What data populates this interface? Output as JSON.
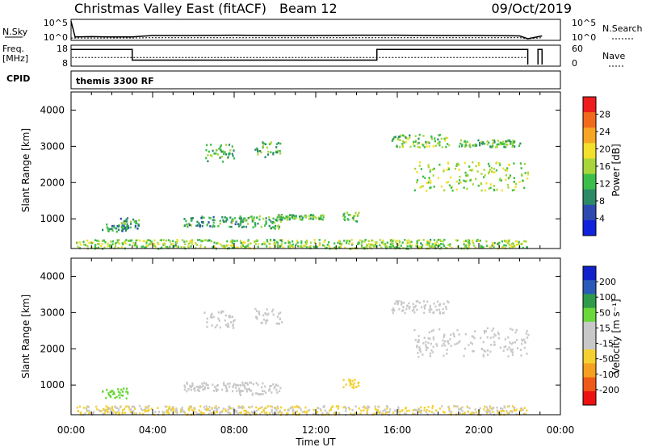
{
  "header": {
    "title": "Christmas Valley East (fitACF)",
    "beam": "Beam 12",
    "date": "09/Oct/2019"
  },
  "noise_panel": {
    "left_label": "N.Sky",
    "left_ticks": [
      "10^5",
      "10^0"
    ],
    "right_ticks": [
      "10^5",
      "10^0"
    ],
    "right_label": "N.Search"
  },
  "freq_panel": {
    "left_label_line1": "Freq.",
    "left_label_line2": "[MHz]",
    "left_ticks": [
      "18",
      "8"
    ],
    "right_ticks": [
      "60",
      "0"
    ],
    "right_label": "Nave"
  },
  "cpid_panel": {
    "label": "CPID",
    "program": "themis 3300 RF"
  },
  "axes": {
    "ylabel": "Slant Range [km]",
    "xlabel": "Time UT",
    "xticks": [
      "00:00",
      "04:00",
      "08:00",
      "12:00",
      "16:00",
      "20:00",
      "00:00"
    ],
    "yticks": [
      "1000",
      "2000",
      "3000",
      "4000"
    ]
  },
  "colorbars": {
    "power": {
      "label": "Power [dB]",
      "ticks": [
        "4",
        "8",
        "12",
        "16",
        "20",
        "24",
        "28"
      ]
    },
    "velocity": {
      "label": "Velocity [m s⁻¹]",
      "ticks": [
        "200",
        "100",
        "50",
        "15",
        "-15",
        "-50",
        "-100",
        "-200"
      ]
    }
  },
  "colors": {
    "power_scale": [
      "#1122dd",
      "#2e4ab0",
      "#2c8a66",
      "#3cbf4a",
      "#a8d63a",
      "#f2e02a",
      "#f6a623",
      "#f26b1c",
      "#ee1c1c"
    ],
    "velocity_scale": [
      "#ee1111",
      "#f05a18",
      "#f5a020",
      "#f4d030",
      "#c8c8c8",
      "#c8c8c8",
      "#6ad83a",
      "#2e9a4a",
      "#2a5ab8",
      "#1122cc"
    ]
  },
  "chart_data": [
    {
      "type": "line",
      "name": "noise",
      "x_hours": [
        0,
        0.2,
        1,
        2,
        3,
        4,
        6,
        8,
        10,
        12,
        14,
        16,
        18,
        20,
        22,
        22.4,
        23.1
      ],
      "y_log10_sky": [
        4.9,
        0.5,
        0.6,
        0.5,
        0.5,
        0.9,
        0.9,
        1.0,
        0.9,
        0.9,
        1.0,
        1.0,
        0.9,
        0.9,
        0.8,
        0.0,
        0.8
      ],
      "y_log10_search": [
        0.2,
        0.2,
        0.2,
        0.2,
        0.2,
        0.3,
        0.3,
        0.3,
        0.3,
        0.3,
        0.3,
        0.3,
        0.3,
        0.3,
        0.3,
        0.0,
        0.3
      ],
      "ylim_log10": [
        0,
        5
      ]
    },
    {
      "type": "line",
      "name": "frequency",
      "segments": [
        {
          "x0": 0,
          "x1": 3.0,
          "freq_mhz": 16.5
        },
        {
          "x0": 3.0,
          "x1": 15.0,
          "freq_mhz": 10.5
        },
        {
          "x0": 15.0,
          "x1": 22.4,
          "freq_mhz": 16.5
        },
        {
          "x0": 22.9,
          "x1": 23.1,
          "freq_mhz": 16.5
        }
      ],
      "nave": 24,
      "ylim_freq": [
        8,
        18
      ],
      "ylim_nave": [
        0,
        60
      ]
    },
    {
      "type": "heatmap",
      "name": "power",
      "x_range_hours": [
        0,
        24
      ],
      "y_range_km": [
        180,
        4500
      ],
      "clim_db": [
        0,
        30
      ],
      "bands": [
        {
          "t0": 1.5,
          "t1": 2.7,
          "r0": 650,
          "r1": 900,
          "level": 8
        },
        {
          "t0": 2.3,
          "t1": 3.5,
          "r0": 750,
          "r1": 1050,
          "level": 9
        },
        {
          "t0": 5.5,
          "t1": 8.5,
          "r0": 800,
          "r1": 1100,
          "level": 9
        },
        {
          "t0": 8.2,
          "t1": 10.3,
          "r0": 750,
          "r1": 1100,
          "level": 11
        },
        {
          "t0": 10.0,
          "t1": 12.5,
          "r0": 1000,
          "r1": 1150,
          "level": 12
        },
        {
          "t0": 13.3,
          "t1": 14.1,
          "r0": 950,
          "r1": 1200,
          "level": 13
        },
        {
          "t0": 6.5,
          "t1": 8.0,
          "r0": 2600,
          "r1": 3100,
          "level": 11
        },
        {
          "t0": 9.0,
          "t1": 10.3,
          "r0": 2700,
          "r1": 3150,
          "level": 12
        },
        {
          "t0": 15.7,
          "t1": 18.5,
          "r0": 3000,
          "r1": 3350,
          "level": 13
        },
        {
          "t0": 16.8,
          "t1": 22.4,
          "r0": 1800,
          "r1": 2600,
          "level": 15
        },
        {
          "t0": 19.0,
          "t1": 22.0,
          "r0": 3000,
          "r1": 3200,
          "level": 12
        },
        {
          "t0": 0.2,
          "t1": 22.4,
          "r0": 200,
          "r1": 450,
          "level": 14
        }
      ]
    },
    {
      "type": "heatmap",
      "name": "velocity",
      "x_range_hours": [
        0,
        24
      ],
      "y_range_km": [
        180,
        4500
      ],
      "clim_ms": [
        -200,
        200
      ],
      "bands": [
        {
          "t0": 1.5,
          "t1": 2.8,
          "r0": 650,
          "r1": 950,
          "vel": 60
        },
        {
          "t0": 5.5,
          "t1": 8.5,
          "r0": 850,
          "r1": 1100,
          "vel": -15
        },
        {
          "t0": 8.2,
          "t1": 10.3,
          "r0": 750,
          "r1": 1100,
          "vel": -10
        },
        {
          "t0": 13.3,
          "t1": 14.1,
          "r0": 950,
          "r1": 1200,
          "vel": -60
        },
        {
          "t0": 6.5,
          "t1": 8.0,
          "r0": 2600,
          "r1": 3100,
          "vel": 5
        },
        {
          "t0": 9.0,
          "t1": 10.3,
          "r0": 2700,
          "r1": 3150,
          "vel": 5
        },
        {
          "t0": 15.7,
          "t1": 18.5,
          "r0": 3000,
          "r1": 3350,
          "vel": 0
        },
        {
          "t0": 16.8,
          "t1": 22.4,
          "r0": 1800,
          "r1": 2600,
          "vel": 0
        },
        {
          "t0": 0.2,
          "t1": 22.4,
          "r0": 200,
          "r1": 450,
          "vel": -40
        }
      ]
    }
  ]
}
